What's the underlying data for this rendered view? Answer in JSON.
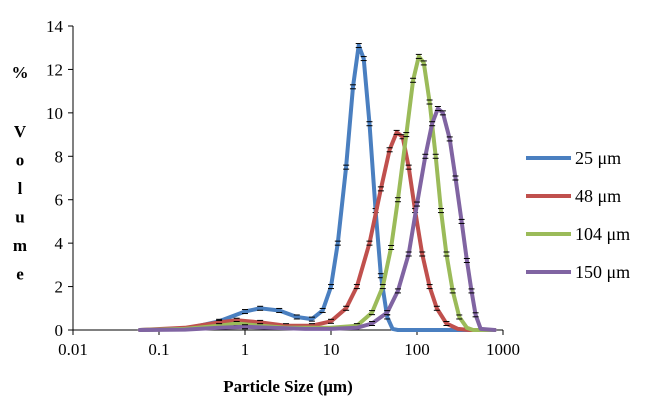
{
  "chart_data": {
    "type": "line",
    "title": "",
    "xlabel": "Particle Size (μm)",
    "ylabel": "% Volume",
    "x_scale": "log",
    "xlim": [
      0.01,
      1000
    ],
    "ylim": [
      0,
      14
    ],
    "x_ticks": [
      "0.01",
      "0.1",
      "1",
      "10",
      "100",
      "1000"
    ],
    "y_ticks": [
      "0",
      "2",
      "4",
      "6",
      "8",
      "10",
      "12",
      "14"
    ],
    "grid": false,
    "legend_position": "right",
    "series": [
      {
        "name": "25 μm",
        "color": "#4a7fc0",
        "x": [
          0.06,
          0.2,
          0.5,
          1.0,
          1.5,
          2.5,
          4,
          6,
          8,
          10,
          12,
          15,
          18,
          21,
          24,
          28,
          33,
          38,
          45,
          52,
          60,
          800
        ],
        "y": [
          0,
          0.05,
          0.4,
          0.85,
          1.0,
          0.9,
          0.6,
          0.5,
          0.9,
          2.0,
          4.0,
          7.5,
          11.2,
          13.1,
          12.5,
          9.5,
          5.5,
          2.5,
          0.6,
          0.05,
          0,
          0
        ]
      },
      {
        "name": "48 μm",
        "color": "#c0504d",
        "x": [
          0.06,
          0.2,
          0.5,
          0.8,
          1.5,
          3,
          6,
          10,
          15,
          20,
          28,
          38,
          48,
          58,
          68,
          80,
          95,
          115,
          140,
          170,
          220,
          300,
          400,
          800
        ],
        "y": [
          0,
          0.1,
          0.35,
          0.45,
          0.35,
          0.2,
          0.2,
          0.4,
          1.0,
          2.0,
          4.0,
          6.5,
          8.3,
          9.1,
          8.9,
          7.5,
          5.5,
          3.5,
          2.0,
          1.0,
          0.3,
          0.05,
          0,
          0
        ]
      },
      {
        "name": "104 μm",
        "color": "#9bbb59",
        "x": [
          0.06,
          0.2,
          0.5,
          0.8,
          1.5,
          3,
          6,
          10,
          20,
          30,
          40,
          50,
          60,
          75,
          90,
          105,
          120,
          140,
          165,
          190,
          220,
          260,
          310,
          380,
          450,
          800
        ],
        "y": [
          0,
          0.05,
          0.2,
          0.3,
          0.2,
          0.1,
          0.1,
          0.1,
          0.2,
          0.8,
          2.0,
          3.8,
          6.0,
          9.0,
          11.5,
          12.6,
          12.3,
          10.5,
          8.0,
          5.5,
          3.5,
          1.8,
          0.6,
          0.1,
          0,
          0
        ]
      },
      {
        "name": "150 μm",
        "color": "#8064a2",
        "x": [
          0.06,
          0.2,
          0.5,
          1.0,
          2,
          5,
          10,
          20,
          30,
          45,
          60,
          80,
          100,
          125,
          150,
          175,
          200,
          240,
          280,
          330,
          380,
          430,
          480,
          550,
          800
        ],
        "y": [
          0,
          0.02,
          0.1,
          0.15,
          0.1,
          0.05,
          0.05,
          0.1,
          0.3,
          0.8,
          1.8,
          3.5,
          5.8,
          8.0,
          9.5,
          10.2,
          10.0,
          8.8,
          7.0,
          5.0,
          3.2,
          1.8,
          0.7,
          0.05,
          0
        ]
      }
    ]
  }
}
